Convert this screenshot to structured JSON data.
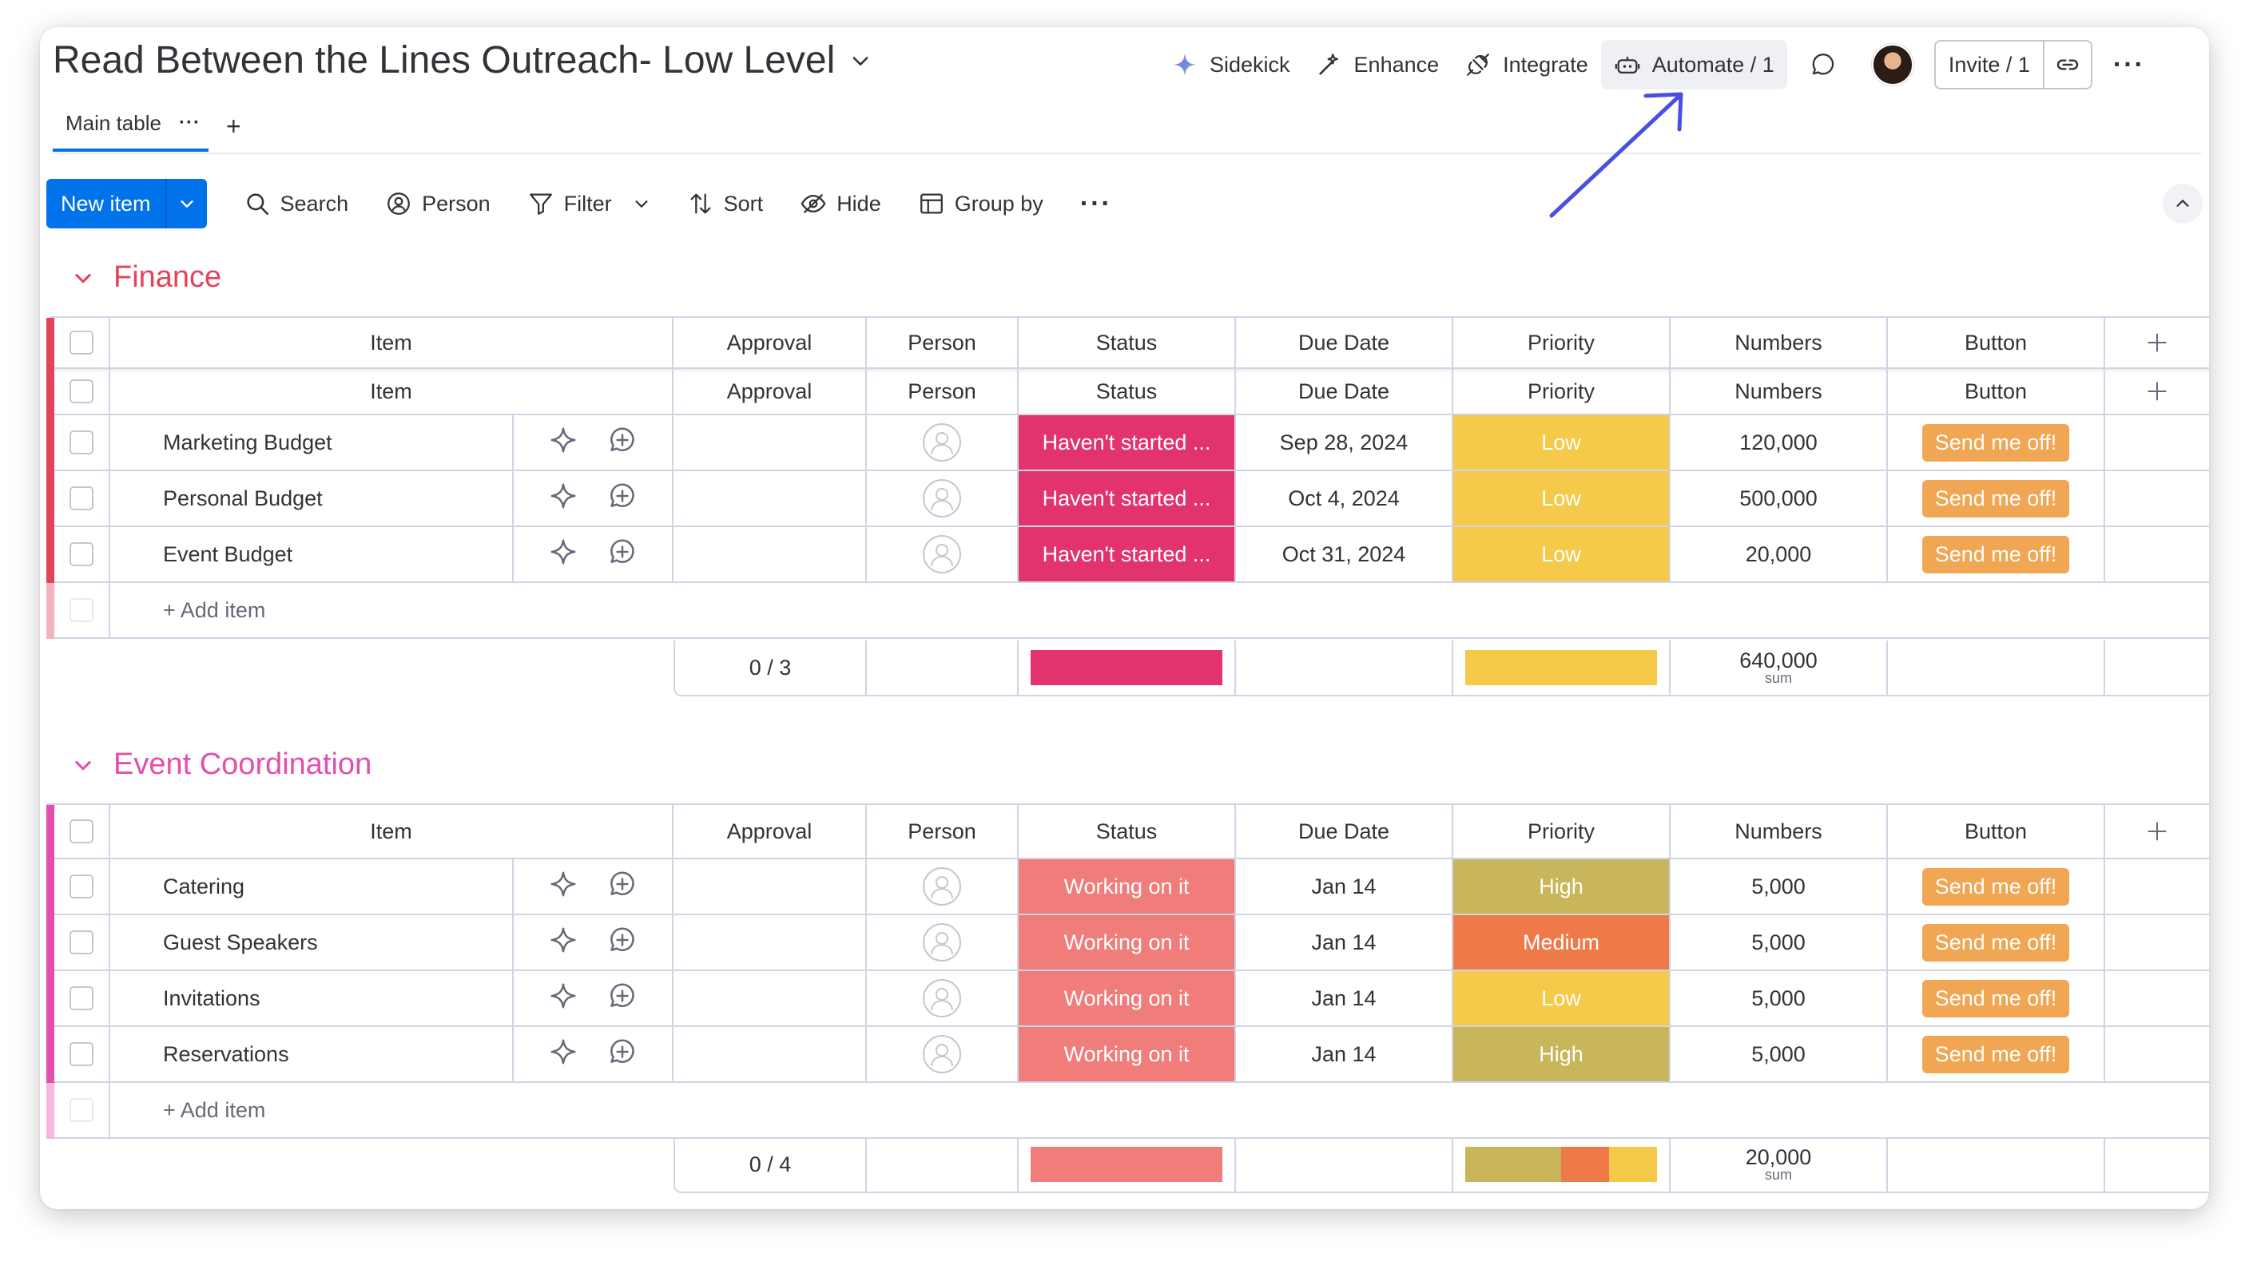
{
  "header": {
    "board_title": "Read Between the Lines Outreach- Low Level",
    "sidekick": "Sidekick",
    "enhance": "Enhance",
    "integrate": "Integrate",
    "automate": "Automate / 1",
    "invite": "Invite / 1"
  },
  "tabs": {
    "main": "Main table",
    "main_dots": "···",
    "add": "+"
  },
  "toolbar": {
    "new_item": "New item",
    "search": "Search",
    "person": "Person",
    "filter": "Filter",
    "sort": "Sort",
    "hide": "Hide",
    "group_by": "Group by",
    "more": "···"
  },
  "columns": {
    "item": "Item",
    "approval": "Approval",
    "person": "Person",
    "status": "Status",
    "due_date": "Due Date",
    "priority": "Priority",
    "numbers": "Numbers",
    "button": "Button"
  },
  "colors": {
    "finance_group": "#e2445c",
    "event_group": "#e44ead",
    "status_not_started": "#e2336e",
    "status_working": "#f17d7a",
    "priority_low": "#f5c94a",
    "priority_high": "#c9b55a",
    "priority_medium": "#ee7a4a",
    "button": "#f0a652",
    "accent": "#0073ea",
    "annotation_arrow": "#4b4fe0"
  },
  "groups": {
    "finance": {
      "title": "Finance",
      "add_item": "+ Add item",
      "rows": [
        {
          "item": "Marketing Budget",
          "status": "Haven't started ...",
          "due": "Sep 28, 2024",
          "priority": "Low",
          "numbers": "120,000",
          "button": "Send me off!"
        },
        {
          "item": "Personal Budget",
          "status": "Haven't started ...",
          "due": "Oct 4, 2024",
          "priority": "Low",
          "numbers": "500,000",
          "button": "Send me off!"
        },
        {
          "item": "Event Budget",
          "status": "Haven't started ...",
          "due": "Oct 31, 2024",
          "priority": "Low",
          "numbers": "20,000",
          "button": "Send me off!"
        }
      ],
      "summary": {
        "approval": "0 / 3",
        "numbers": "640,000",
        "numbers_label": "sum"
      }
    },
    "event": {
      "title": "Event Coordination",
      "add_item": "+ Add item",
      "rows": [
        {
          "item": "Catering",
          "status": "Working on it",
          "due": "Jan 14",
          "priority": "High",
          "numbers": "5,000",
          "button": "Send me off!"
        },
        {
          "item": "Guest Speakers",
          "status": "Working on it",
          "due": "Jan 14",
          "priority": "Medium",
          "numbers": "5,000",
          "button": "Send me off!"
        },
        {
          "item": "Invitations",
          "status": "Working on it",
          "due": "Jan 14",
          "priority": "Low",
          "numbers": "5,000",
          "button": "Send me off!"
        },
        {
          "item": "Reservations",
          "status": "Working on it",
          "due": "Jan 14",
          "priority": "High",
          "numbers": "5,000",
          "button": "Send me off!"
        }
      ],
      "summary": {
        "approval": "0 / 4",
        "numbers": "20,000",
        "numbers_label": "sum"
      }
    }
  }
}
